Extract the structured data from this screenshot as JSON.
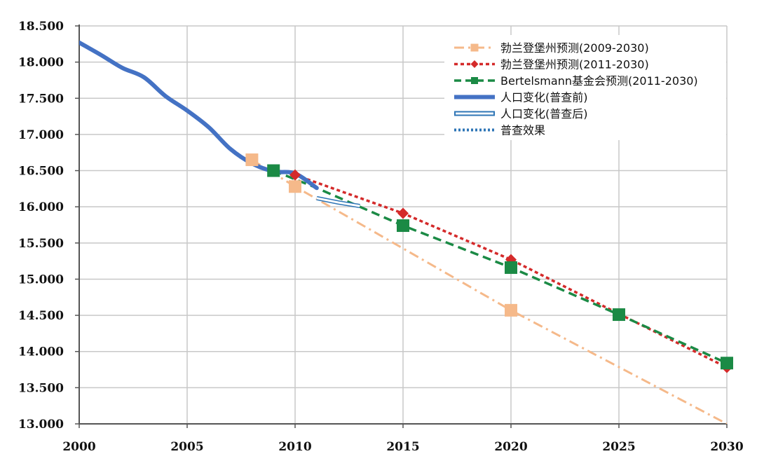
{
  "chart_data": {
    "type": "line",
    "title": "",
    "xlabel": "",
    "ylabel": "",
    "xlim": [
      2000,
      2030
    ],
    "ylim": [
      13000,
      18500
    ],
    "x_ticks": [
      2000,
      2005,
      2010,
      2015,
      2020,
      2025,
      2030
    ],
    "x_tick_labels": [
      "2000",
      "2005",
      "2010",
      "2015",
      "2020",
      "2025",
      "2030"
    ],
    "y_ticks": [
      13000,
      13500,
      14000,
      14500,
      15000,
      15500,
      16000,
      16500,
      17000,
      17500,
      18000,
      18500
    ],
    "y_tick_labels": [
      "13.000",
      "13.500",
      "14.000",
      "14.500",
      "15.000",
      "15.500",
      "16.000",
      "16.500",
      "17.000",
      "17.500",
      "18.000",
      "18.500"
    ],
    "grid": true,
    "legend_position": "top-right",
    "series": [
      {
        "name": "勃兰登堡州预测(2009-2030)",
        "style": "dashdot",
        "marker": "square",
        "color": "#f5b98a",
        "points": [
          [
            2008,
            16650
          ],
          [
            2010,
            16280
          ],
          [
            2020,
            14570
          ],
          [
            2030,
            13000
          ]
        ],
        "markers_at": [
          2008,
          2010,
          2020
        ]
      },
      {
        "name": "勃兰登堡州预测(2011-2030)",
        "style": "dotted",
        "marker": "diamond",
        "color": "#d42a2a",
        "points": [
          [
            2010,
            16440
          ],
          [
            2015,
            15910
          ],
          [
            2020,
            15270
          ],
          [
            2025,
            14520
          ],
          [
            2030,
            13780
          ]
        ],
        "markers_at": [
          2010,
          2015,
          2020,
          2030
        ]
      },
      {
        "name": "Bertelsmann基金会预测(2011-2030)",
        "style": "dashed",
        "marker": "square",
        "color": "#1b8a45",
        "points": [
          [
            2009,
            16500
          ],
          [
            2011,
            16260
          ],
          [
            2015,
            15740
          ],
          [
            2020,
            15160
          ],
          [
            2025,
            14510
          ],
          [
            2030,
            13840
          ]
        ],
        "markers_at": [
          2009,
          2015,
          2020,
          2025,
          2030
        ]
      },
      {
        "name": "人口变化(普查前)",
        "style": "solid-thick",
        "marker": "none",
        "color": "#4472c4",
        "points": [
          [
            2000,
            18270
          ],
          [
            2001,
            18100
          ],
          [
            2002,
            17920
          ],
          [
            2003,
            17790
          ],
          [
            2004,
            17530
          ],
          [
            2005,
            17330
          ],
          [
            2006,
            17100
          ],
          [
            2007,
            16800
          ],
          [
            2008,
            16600
          ],
          [
            2009,
            16490
          ],
          [
            2010,
            16460
          ],
          [
            2011,
            16260
          ]
        ]
      },
      {
        "name": "人口变化(普查后)",
        "style": "outline-hollow",
        "marker": "none",
        "color": "#2e75b6",
        "points": [
          [
            2011,
            16120
          ],
          [
            2012,
            16060
          ],
          [
            2013,
            16010
          ]
        ]
      },
      {
        "name": "普查效果",
        "style": "dotted-blue",
        "marker": "none",
        "color": "#2e75b6",
        "points": []
      }
    ]
  }
}
